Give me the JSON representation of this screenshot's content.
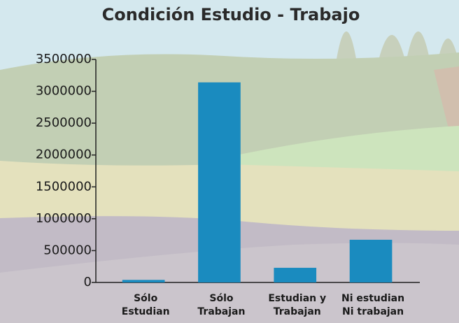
{
  "chart_data": {
    "type": "bar",
    "title": "Condición Estudio - Trabajo",
    "categories": [
      [
        "Sólo",
        "Estudian"
      ],
      [
        "Sólo",
        "Trabajan"
      ],
      [
        "Estudian y",
        "Trabajan"
      ],
      [
        "Ni estudian",
        "Ni trabajan"
      ]
    ],
    "values": [
      40000,
      3140000,
      230000,
      670000
    ],
    "color": "#1a8bbf",
    "ylim": [
      0,
      3500000
    ],
    "yticks": [
      0,
      500000,
      1000000,
      1500000,
      2000000,
      2500000,
      3000000,
      3500000
    ],
    "grid": false
  }
}
